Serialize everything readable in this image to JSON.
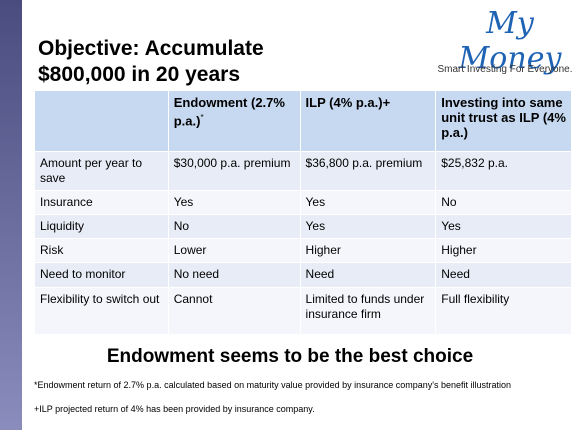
{
  "header": {
    "title": "Objective: Accumulate $800,000 in 20 years",
    "logo": "My Money",
    "tagline": "Smart Investing For Everyone."
  },
  "table": {
    "columns": [
      "Endowment (2.7% p.a.)",
      "ILP (4% p.a.)+",
      "Investing into same unit trust as ILP (4% p.a.)"
    ],
    "column_mark": "*",
    "rows": [
      [
        "Amount per year to save",
        "$30,000 p.a. premium",
        "$36,800 p.a. premium",
        "$25,832 p.a."
      ],
      [
        "Insurance",
        "Yes",
        "Yes",
        "No"
      ],
      [
        "Liquidity",
        "No",
        "Yes",
        "Yes"
      ],
      [
        "Risk",
        "Lower",
        "Higher",
        "Higher"
      ],
      [
        "Need to monitor",
        "No need",
        "Need",
        "Need"
      ],
      [
        "Flexibility to switch out",
        "Cannot",
        "Limited to funds under insurance firm",
        "Full flexibility"
      ]
    ]
  },
  "conclusion": "Endowment seems to be the best choice",
  "footnotes": [
    "*Endowment return of 2.7% p.a. calculated based on maturity value provided by insurance company's benefit illustration",
    "+ILP projected return of 4% has been provided by insurance company."
  ]
}
